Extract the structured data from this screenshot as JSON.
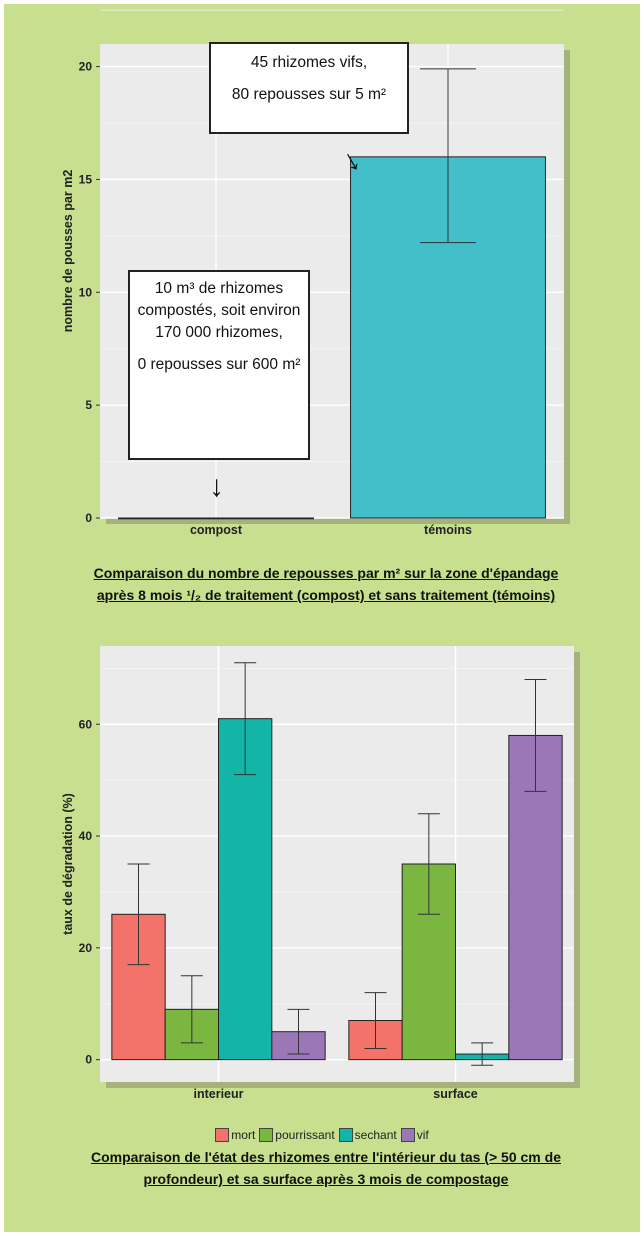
{
  "chart_data": [
    {
      "type": "bar",
      "categories": [
        "compost",
        "témoins"
      ],
      "values": [
        0,
        16
      ],
      "error": [
        [
          0,
          0
        ],
        [
          12.2,
          19.9
        ]
      ],
      "ylabel": "nombre de pousses par m2",
      "xlabel": "",
      "ylim": [
        0,
        21
      ],
      "yticks": [
        0,
        5,
        10,
        15,
        20
      ],
      "grid": true,
      "colors": [
        "#42bfc9",
        "#42bfc9"
      ],
      "annotations": [
        {
          "lines": [
            "45 rhizomes vifs,",
            "80 repousses sur 5 m²"
          ]
        },
        {
          "lines": [
            "10 m³ de rhizomes compostés, soit environ 170 000 rhizomes,",
            "0 repousses sur 600 m²"
          ]
        }
      ],
      "caption_line1": "Comparaison du nombre de repousses par m² sur la zone d'épandage",
      "caption_line2": "après 8 mois ¹/₂ de traitement (compost) et sans traitement (témoins)"
    },
    {
      "type": "bar",
      "categories": [
        "interieur",
        "surface"
      ],
      "series": [
        {
          "name": "mort",
          "values": [
            26,
            7
          ],
          "error": [
            [
              17,
              35
            ],
            [
              2,
              12
            ]
          ],
          "color": "#f3736a"
        },
        {
          "name": "pourrissant",
          "values": [
            9,
            35
          ],
          "error": [
            [
              3,
              15
            ],
            [
              26,
              44
            ]
          ],
          "color": "#7ab640"
        },
        {
          "name": "sechant",
          "values": [
            61,
            1
          ],
          "error": [
            [
              51,
              71
            ],
            [
              -1,
              3
            ]
          ],
          "color": "#14b5a8"
        },
        {
          "name": "vif",
          "values": [
            5,
            58
          ],
          "error": [
            [
              1,
              9
            ],
            [
              48,
              68
            ]
          ],
          "color": "#9b77b8"
        }
      ],
      "ylabel": "taux de dégradation (%)",
      "xlabel": "",
      "ylim": [
        -4,
        74
      ],
      "yticks": [
        0,
        20,
        40,
        60
      ],
      "grid": true,
      "legend_position": "bottom",
      "caption_line1": "Comparaison de l'état des rhizomes entre l'intérieur du tas (> 50 cm de",
      "caption_line2": "profondeur) et sa surface après 3 mois de compostage"
    }
  ],
  "icons": {
    "arrow": "arrow-down-icon"
  }
}
